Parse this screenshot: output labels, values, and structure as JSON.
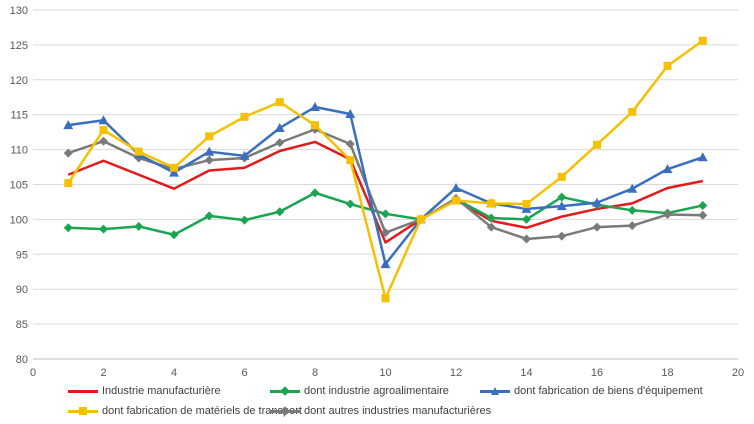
{
  "chart_data": {
    "type": "line",
    "title": "",
    "xlabel": "",
    "ylabel": "",
    "xlim": [
      0,
      20
    ],
    "ylim": [
      80,
      130
    ],
    "x_ticks": [
      "0",
      "2",
      "4",
      "6",
      "8",
      "10",
      "12",
      "14",
      "16",
      "18",
      "20"
    ],
    "y_ticks": [
      "80",
      "85",
      "90",
      "95",
      "100",
      "105",
      "110",
      "115",
      "120",
      "125",
      "130"
    ],
    "grid": "horizontal",
    "legend_position": "bottom",
    "x": [
      1,
      2,
      3,
      4,
      5,
      6,
      7,
      8,
      9,
      10,
      11,
      12,
      13,
      14,
      15,
      16,
      17,
      18,
      19
    ],
    "series": [
      {
        "name": "Industrie manufacturière",
        "color": "#e31a1c",
        "marker": "none",
        "values": [
          106.4,
          108.4,
          106.4,
          104.4,
          107.0,
          107.4,
          109.8,
          111.1,
          108.6,
          96.7,
          100.0,
          102.8,
          99.8,
          98.8,
          100.4,
          101.5,
          102.3,
          104.5,
          105.5
        ]
      },
      {
        "name": "dont industrie agroalimentaire",
        "color": "#1aa552",
        "marker": "diamond",
        "values": [
          98.8,
          98.6,
          99.0,
          97.8,
          100.5,
          99.9,
          101.1,
          103.8,
          102.2,
          100.8,
          100.0,
          102.9,
          100.2,
          100.0,
          103.2,
          102.1,
          101.3,
          100.9,
          102.0
        ]
      },
      {
        "name": "dont fabrication de biens d'équipement",
        "color": "#3a6fbd",
        "marker": "triangle",
        "values": [
          113.5,
          114.2,
          109.3,
          106.7,
          109.7,
          109.1,
          113.1,
          116.1,
          115.1,
          93.6,
          100.0,
          104.5,
          102.3,
          101.5,
          101.9,
          102.4,
          104.4,
          107.2,
          108.9
        ]
      },
      {
        "name": "dont fabrication de matériels de transport",
        "color": "#f5c000",
        "marker": "square",
        "values": [
          105.2,
          112.8,
          109.7,
          107.4,
          111.9,
          114.7,
          116.8,
          113.5,
          108.5,
          88.7,
          100.0,
          102.7,
          102.3,
          102.2,
          106.1,
          110.7,
          115.4,
          122.0,
          125.6
        ]
      },
      {
        "name": "dont autres industries manufacturières",
        "color": "#7a7a7a",
        "marker": "diamond",
        "values": [
          109.5,
          111.2,
          108.8,
          107.2,
          108.5,
          108.8,
          111.0,
          112.9,
          110.8,
          98.1,
          100.0,
          103.0,
          98.9,
          97.2,
          97.6,
          98.9,
          99.1,
          100.7,
          100.6
        ]
      }
    ]
  }
}
